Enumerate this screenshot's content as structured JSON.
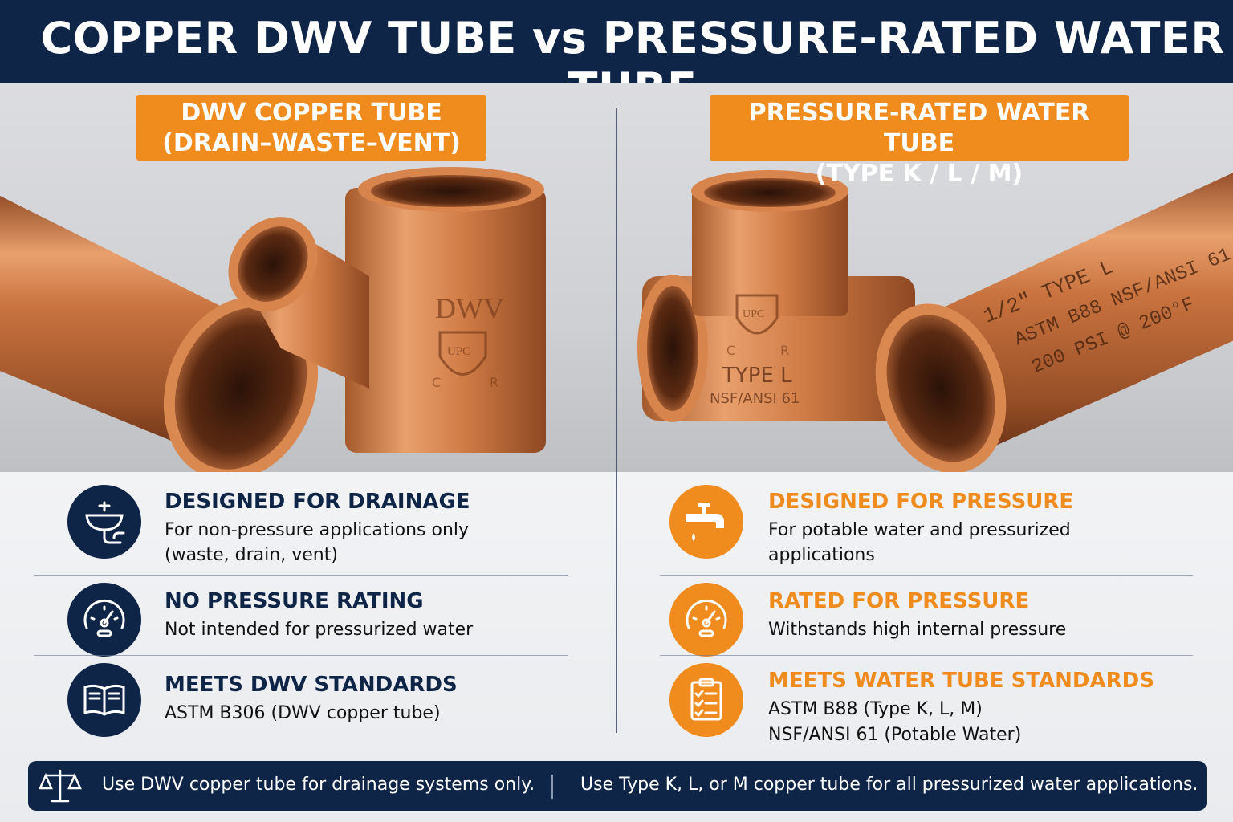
{
  "header": {
    "title": "COPPER DWV TUBE vs PRESSURE-RATED WATER TUBE"
  },
  "left": {
    "tag_line1": "DWV COPPER TUBE",
    "tag_line2": "(DRAIN–WASTE–VENT)",
    "fitting_marks": {
      "dwv": "DWV",
      "shield": "UPC",
      "c": "C",
      "r": "R"
    },
    "features": [
      {
        "icon": "sink-icon",
        "title": "DESIGNED FOR DRAINAGE",
        "lines": [
          "For non-pressure applications only",
          "(waste, drain, vent)"
        ]
      },
      {
        "icon": "gauge-icon",
        "title": "NO PRESSURE RATING",
        "lines": [
          "Not intended for pressurized water"
        ]
      },
      {
        "icon": "book-icon",
        "title": "MEETS DWV STANDARDS",
        "lines": [
          "ASTM B306 (DWV copper tube)"
        ]
      }
    ]
  },
  "right": {
    "tag_line1": "PRESSURE-RATED WATER TUBE",
    "tag_line2": "(TYPE K / L / M)",
    "fitting_marks": {
      "shield": "UPC",
      "c": "C",
      "r": "R",
      "type": "TYPE L",
      "nsf": "NSF/ANSI 61"
    },
    "pipe_marks": {
      "line1": "1/2\"  TYPE L",
      "line2": "ASTM B88    NSF/ANSI 61",
      "line3": "200 PSI @ 200°F"
    },
    "features": [
      {
        "icon": "faucet-icon",
        "title": "DESIGNED FOR PRESSURE",
        "lines": [
          "For potable water and pressurized",
          "applications"
        ]
      },
      {
        "icon": "gauge-icon",
        "title": "RATED FOR PRESSURE",
        "lines": [
          "Withstands high internal pressure"
        ]
      },
      {
        "icon": "checklist-icon",
        "title": "MEETS WATER TUBE STANDARDS",
        "lines": [
          "ASTM B88 (Type K, L, M)",
          "NSF/ANSI 61 (Potable Water)"
        ]
      }
    ]
  },
  "footer": {
    "icon": "scales-icon",
    "left_text": "Use DWV copper tube for drainage systems only.",
    "right_text": "Use Type K, L, or M copper tube for all pressurized water applications."
  },
  "colors": {
    "navy": "#0f2548",
    "orange": "#f08b1e",
    "copper": "#c8703a"
  }
}
